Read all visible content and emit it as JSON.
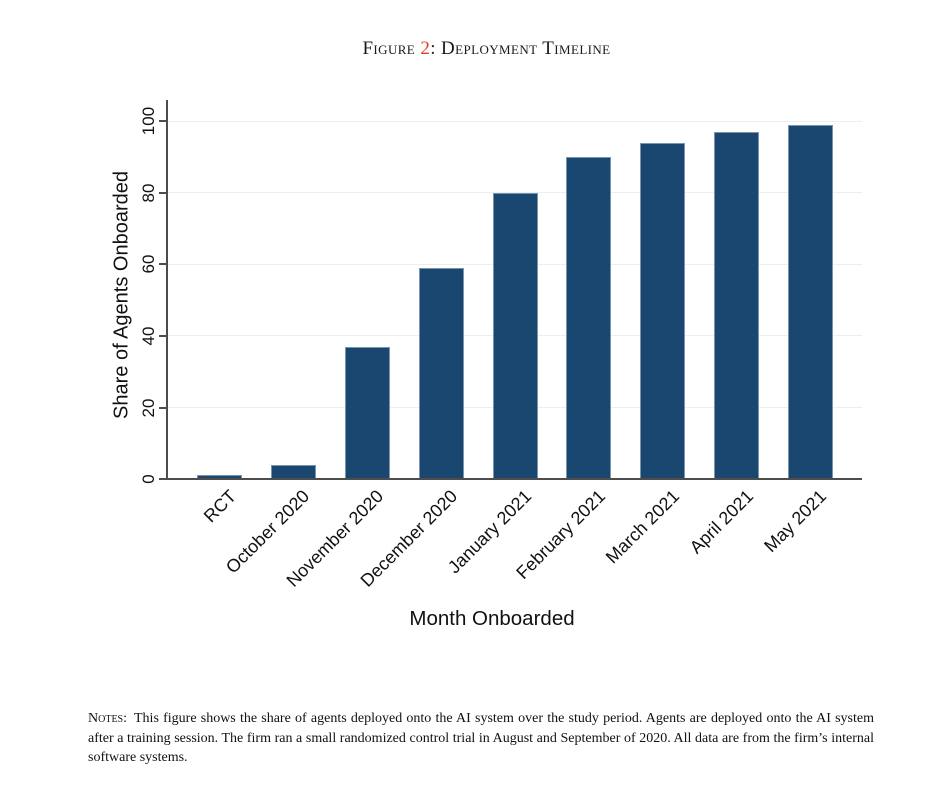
{
  "figure": {
    "title": {
      "prefix": "Figure ",
      "number": "2",
      "suffix": ": Deployment Timeline",
      "number_color": "#e8392a"
    }
  },
  "chart_data": {
    "type": "bar",
    "title": "Figure 2: Deployment Timeline",
    "categories": [
      "RCT",
      "October 2020",
      "November 2020",
      "December 2020",
      "January 2021",
      "February 2021",
      "March 2021",
      "April 2021",
      "May 2021"
    ],
    "values": [
      1,
      4,
      37,
      59,
      80,
      90,
      94,
      97,
      99
    ],
    "xlabel": "Month Onboarded",
    "ylabel": "Share of Agents Onboarded",
    "ylim": [
      0,
      106
    ],
    "yticks": [
      0,
      20,
      40,
      60,
      80,
      100
    ],
    "grid": true,
    "legend": false,
    "bar_color": "#1a476f",
    "bar_edge_color": "#c6d5e0",
    "gridline_color": "#e9eff2",
    "axis_color": "#4d4d4d"
  },
  "notes": {
    "label": "Notes:",
    "text": "This figure shows the share of agents deployed onto the AI system over the study period. Agents are deployed onto the AI system after a training session. The firm ran a small randomized control trial in August and September of 2020. All data are from the firm’s internal software systems."
  }
}
